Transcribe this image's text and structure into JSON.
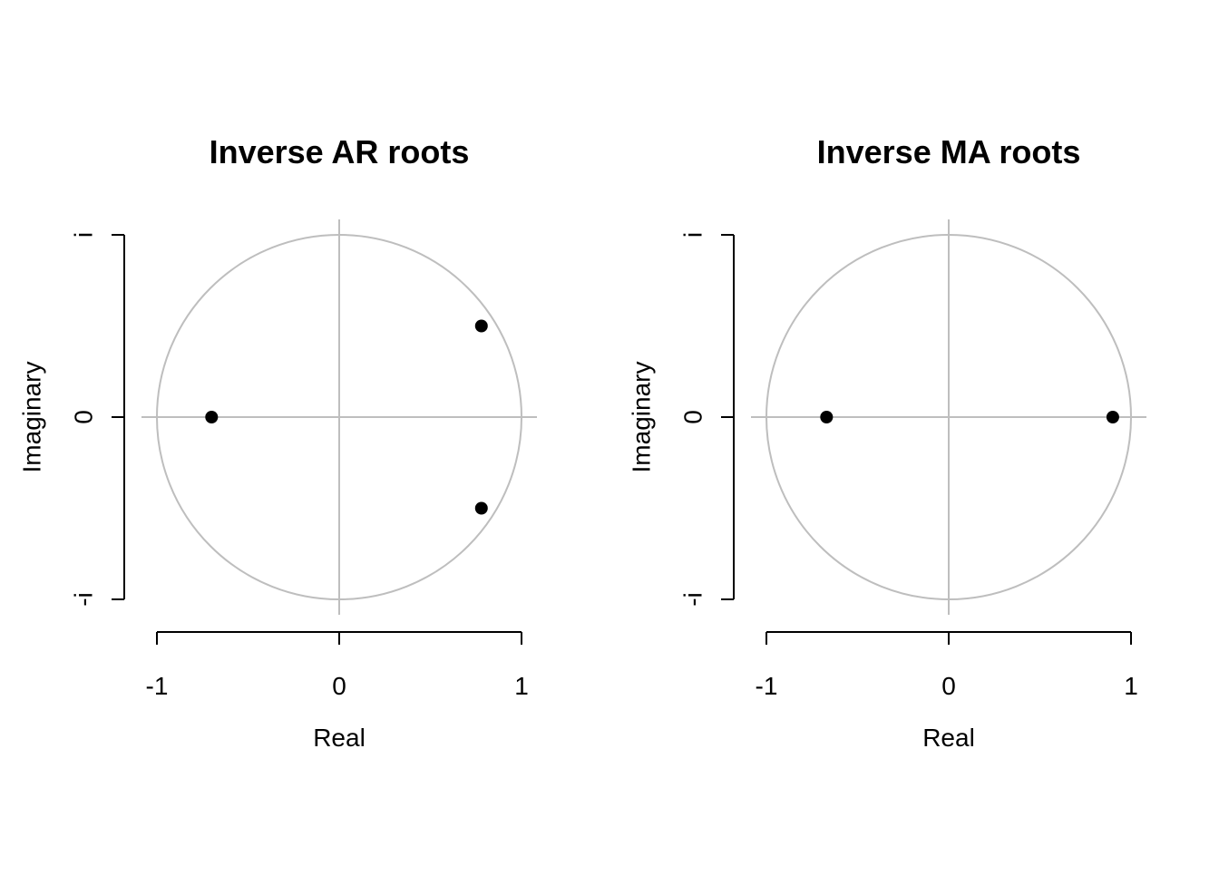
{
  "chart_data": [
    {
      "type": "scatter",
      "title": "Inverse AR roots",
      "xlabel": "Real",
      "ylabel": "Imaginary",
      "xlim": [
        -1,
        1
      ],
      "ylim": [
        -1,
        1
      ],
      "x_ticks": [
        -1,
        0,
        1
      ],
      "x_tick_labels": [
        "-1",
        "0",
        "1"
      ],
      "y_ticks": [
        -1,
        0,
        1
      ],
      "y_tick_labels": [
        "-i",
        "0",
        "i"
      ],
      "grid": false,
      "unit_circle": true,
      "reference_color": "#bebebe",
      "point_color": "#000000",
      "points": [
        {
          "x": -0.7,
          "y": 0.0
        },
        {
          "x": 0.78,
          "y": 0.5
        },
        {
          "x": 0.78,
          "y": -0.5
        }
      ]
    },
    {
      "type": "scatter",
      "title": "Inverse MA roots",
      "xlabel": "Real",
      "ylabel": "Imaginary",
      "xlim": [
        -1,
        1
      ],
      "ylim": [
        -1,
        1
      ],
      "x_ticks": [
        -1,
        0,
        1
      ],
      "x_tick_labels": [
        "-1",
        "0",
        "1"
      ],
      "y_ticks": [
        -1,
        0,
        1
      ],
      "y_tick_labels": [
        "-i",
        "0",
        "i"
      ],
      "grid": false,
      "unit_circle": true,
      "reference_color": "#bebebe",
      "point_color": "#000000",
      "points": [
        {
          "x": -0.67,
          "y": 0.0
        },
        {
          "x": 0.9,
          "y": 0.0
        }
      ]
    }
  ]
}
